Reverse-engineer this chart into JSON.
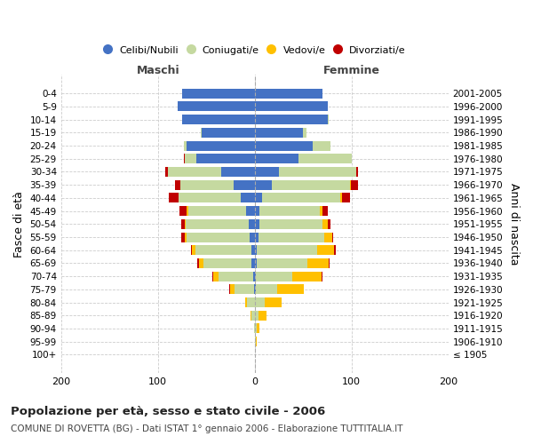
{
  "age_groups": [
    "100+",
    "95-99",
    "90-94",
    "85-89",
    "80-84",
    "75-79",
    "70-74",
    "65-69",
    "60-64",
    "55-59",
    "50-54",
    "45-49",
    "40-44",
    "35-39",
    "30-34",
    "25-29",
    "20-24",
    "15-19",
    "10-14",
    "5-9",
    "0-4"
  ],
  "birth_years": [
    "≤ 1905",
    "1906-1910",
    "1911-1915",
    "1916-1920",
    "1921-1925",
    "1926-1930",
    "1931-1935",
    "1936-1940",
    "1941-1945",
    "1946-1950",
    "1951-1955",
    "1956-1960",
    "1961-1965",
    "1966-1970",
    "1971-1975",
    "1976-1980",
    "1981-1985",
    "1986-1990",
    "1991-1995",
    "1996-2000",
    "2001-2005"
  ],
  "male": {
    "celibi": [
      0,
      0,
      0,
      0,
      0,
      1,
      2,
      3,
      3,
      5,
      6,
      9,
      14,
      22,
      35,
      60,
      70,
      55,
      75,
      80,
      75
    ],
    "coniugati": [
      0,
      0,
      1,
      3,
      8,
      20,
      35,
      50,
      58,
      65,
      65,
      60,
      65,
      55,
      55,
      12,
      3,
      1,
      0,
      0,
      0
    ],
    "vedovi": [
      0,
      0,
      0,
      1,
      2,
      4,
      6,
      5,
      4,
      2,
      1,
      1,
      0,
      0,
      0,
      0,
      0,
      0,
      0,
      0,
      0
    ],
    "divorziati": [
      0,
      0,
      0,
      0,
      0,
      1,
      1,
      1,
      1,
      4,
      4,
      8,
      10,
      5,
      2,
      1,
      0,
      0,
      0,
      0,
      0
    ]
  },
  "female": {
    "nubili": [
      0,
      0,
      0,
      0,
      0,
      1,
      1,
      2,
      2,
      4,
      5,
      5,
      8,
      18,
      25,
      45,
      60,
      50,
      75,
      75,
      70
    ],
    "coniugate": [
      0,
      1,
      2,
      4,
      10,
      22,
      38,
      52,
      62,
      68,
      65,
      62,
      80,
      80,
      80,
      55,
      18,
      3,
      1,
      0,
      0
    ],
    "vedove": [
      0,
      1,
      3,
      8,
      18,
      28,
      30,
      22,
      18,
      8,
      5,
      3,
      2,
      1,
      0,
      0,
      0,
      0,
      0,
      0,
      0
    ],
    "divorziate": [
      0,
      0,
      0,
      0,
      0,
      0,
      1,
      1,
      2,
      1,
      3,
      5,
      8,
      8,
      2,
      0,
      0,
      0,
      0,
      0,
      0
    ]
  },
  "colors": {
    "celibi": "#4472c4",
    "coniugati": "#c5d9a0",
    "vedovi": "#ffc000",
    "divorziati": "#c00000"
  },
  "xlim": [
    -200,
    200
  ],
  "xticks": [
    -200,
    -100,
    0,
    100,
    200
  ],
  "xticklabels": [
    "200",
    "100",
    "0",
    "100",
    "200"
  ],
  "title": "Popolazione per età, sesso e stato civile - 2006",
  "subtitle": "COMUNE DI ROVETTA (BG) - Dati ISTAT 1° gennaio 2006 - Elaborazione TUTTITALIA.IT",
  "ylabel_left": "Fasce di età",
  "ylabel_right": "Anni di nascita",
  "label_maschi": "Maschi",
  "label_femmine": "Femmine",
  "legend_labels": [
    "Celibi/Nubili",
    "Coniugati/e",
    "Vedovi/e",
    "Divorziati/e"
  ],
  "bg_color": "#ffffff",
  "grid_color": "#cccccc"
}
